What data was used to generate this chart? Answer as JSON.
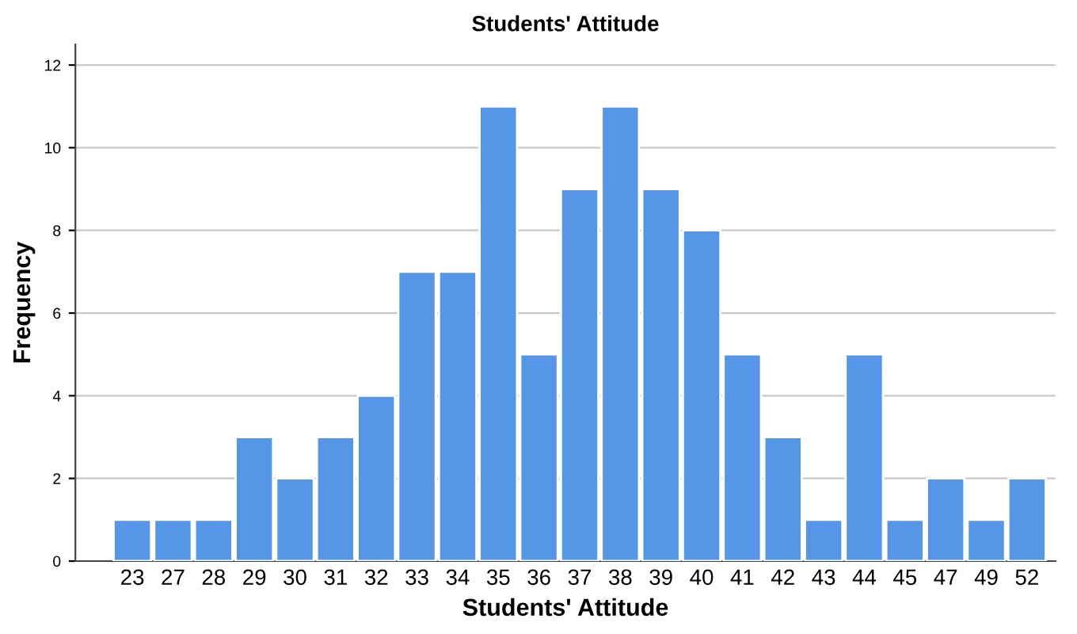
{
  "chart_data": {
    "type": "bar",
    "title": "Students' Attitude",
    "xlabel": "Students' Attitude",
    "ylabel": "Frequency",
    "categories": [
      "23",
      "27",
      "28",
      "29",
      "30",
      "31",
      "32",
      "33",
      "34",
      "35",
      "36",
      "37",
      "38",
      "39",
      "40",
      "41",
      "42",
      "43",
      "44",
      "45",
      "47",
      "49",
      "52"
    ],
    "values": [
      1,
      1,
      1,
      3,
      2,
      3,
      4,
      7,
      7,
      11,
      5,
      9,
      11,
      9,
      8,
      5,
      3,
      1,
      5,
      1,
      2,
      1,
      2
    ],
    "color": "#5597e6",
    "ylim": [
      0,
      12.5
    ],
    "yticks": [
      0,
      2,
      4,
      6,
      8,
      10,
      12
    ],
    "grid": "y"
  }
}
